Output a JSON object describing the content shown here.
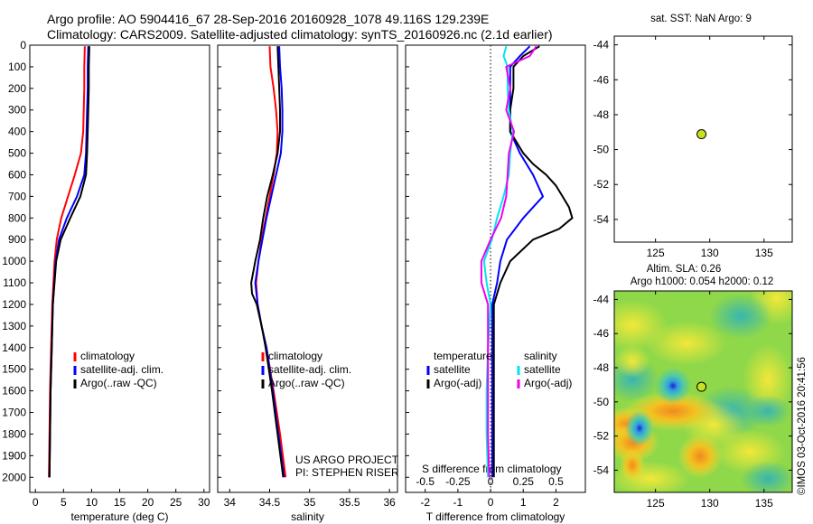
{
  "header": {
    "title_line1": "Argo profile: AO 5904416_67 28-Sep-2016 20160928_1078 49.116S 129.239E",
    "title_line2": "Climatology: CARS2009. Satellite-adjusted climatology: synTS_20160926.nc (2.1d earlier)"
  },
  "credit": "©IMOS 03-Oct-2016 20:41:56",
  "colors": {
    "climatology": "#ff0000",
    "satellite": "#0000ff",
    "argo": "#000000",
    "sal_satellite": "#00e5ee",
    "sal_argo": "#ee00ee",
    "marker_fill": "#c8e020"
  },
  "chart_data": [
    {
      "type": "line",
      "panel": "temperature",
      "xlabel": "temperature (deg C)",
      "ylabel": "",
      "xlim": [
        -1,
        31
      ],
      "ylim": [
        2070,
        0
      ],
      "xticks": [
        "0",
        "5",
        "10",
        "15",
        "20",
        "25",
        "30"
      ],
      "yticks": [
        "0",
        "100",
        "200",
        "300",
        "400",
        "500",
        "600",
        "700",
        "800",
        "900",
        "1000",
        "1100",
        "1200",
        "1300",
        "1400",
        "1500",
        "1600",
        "1700",
        "1800",
        "1900",
        "2000"
      ],
      "legend": [
        "climatology",
        "satellite-adj. clim.",
        "Argo(..raw -QC)"
      ],
      "series": [
        {
          "name": "climatology",
          "depth": [
            5,
            100,
            200,
            300,
            400,
            500,
            600,
            700,
            800,
            900,
            1000,
            1200,
            1400,
            1600,
            1800,
            2000
          ],
          "values": [
            8.8,
            8.7,
            8.7,
            8.6,
            8.5,
            8.1,
            7.0,
            5.8,
            4.6,
            3.8,
            3.4,
            3.0,
            2.8,
            2.6,
            2.5,
            2.4
          ]
        },
        {
          "name": "satellite-adj. clim.",
          "depth": [
            5,
            100,
            200,
            300,
            400,
            500,
            600,
            700,
            800,
            900,
            1000,
            1200,
            1400,
            1600,
            1800,
            2000
          ],
          "values": [
            9.4,
            9.3,
            9.3,
            9.2,
            9.1,
            9.0,
            8.7,
            7.4,
            5.6,
            4.2,
            3.6,
            3.1,
            2.9,
            2.7,
            2.6,
            2.5
          ]
        },
        {
          "name": "Argo(..raw -QC)",
          "depth": [
            5,
            100,
            200,
            300,
            400,
            500,
            600,
            700,
            800,
            900,
            1000,
            1200,
            1400,
            1600,
            1800,
            2000
          ],
          "values": [
            9.6,
            9.5,
            9.5,
            9.4,
            9.3,
            9.2,
            9.0,
            8.0,
            6.2,
            4.5,
            3.7,
            3.1,
            2.9,
            2.7,
            2.6,
            2.5
          ]
        }
      ],
      "annotations": []
    },
    {
      "type": "line",
      "panel": "salinity",
      "xlabel": "salinity",
      "xlim": [
        33.85,
        36.1
      ],
      "ylim": [
        2070,
        0
      ],
      "xticks": [
        "34",
        "34.5",
        "35",
        "35.5",
        "36"
      ],
      "legend": [
        "climatology",
        "satellite-adj. clim.",
        "Argo(..raw -QC)"
      ],
      "series": [
        {
          "name": "climatology",
          "depth": [
            5,
            100,
            200,
            300,
            400,
            500,
            600,
            700,
            800,
            900,
            1000,
            1100,
            1200,
            1300,
            1400,
            1600,
            1800,
            2000
          ],
          "values": [
            34.5,
            34.51,
            34.55,
            34.58,
            34.6,
            34.59,
            34.55,
            34.5,
            34.45,
            34.4,
            34.36,
            34.33,
            34.35,
            34.4,
            34.46,
            34.55,
            34.63,
            34.7
          ]
        },
        {
          "name": "satellite-adj. clim.",
          "depth": [
            5,
            100,
            200,
            300,
            400,
            500,
            600,
            700,
            800,
            900,
            1000,
            1100,
            1200,
            1300,
            1400,
            1600,
            1800,
            2000
          ],
          "values": [
            34.62,
            34.63,
            34.65,
            34.66,
            34.66,
            34.64,
            34.58,
            34.52,
            34.46,
            34.41,
            34.36,
            34.32,
            34.35,
            34.4,
            34.46,
            34.54,
            34.61,
            34.68
          ]
        },
        {
          "name": "Argo(..raw -QC)",
          "depth": [
            5,
            100,
            200,
            300,
            400,
            500,
            600,
            700,
            800,
            900,
            1000,
            1100,
            1150,
            1200,
            1300,
            1400,
            1600,
            1800,
            2000
          ],
          "values": [
            34.6,
            34.61,
            34.62,
            34.63,
            34.63,
            34.6,
            34.54,
            34.47,
            34.42,
            34.38,
            34.32,
            34.27,
            34.28,
            34.34,
            34.4,
            34.45,
            34.53,
            34.6,
            34.67
          ]
        }
      ],
      "annotations": [
        "US ARGO PROJECT",
        "PI: STEPHEN RISER"
      ]
    },
    {
      "type": "line",
      "panel": "difference",
      "xlabel": "T difference from climatology",
      "x2label": "S difference from climatology",
      "xlim": [
        -2.6,
        2.9
      ],
      "ylim": [
        2070,
        0
      ],
      "xticks": [
        "-2",
        "-1",
        "0",
        "1",
        "2"
      ],
      "x2ticks": [
        "-0.5",
        "-0.25",
        "0",
        "0.25",
        "0.5"
      ],
      "legend_temperature": {
        "title": "temperature",
        "items": [
          "satellite",
          "Argo(-adj)"
        ]
      },
      "legend_salinity": {
        "title": "salinity",
        "items": [
          "satellite",
          "Argo(-adj)"
        ]
      },
      "series": [
        {
          "name": "temperature satellite",
          "depth": [
            5,
            50,
            100,
            200,
            300,
            400,
            500,
            600,
            700,
            800,
            900,
            1000,
            1100,
            1200,
            1400,
            1600,
            1800,
            2000
          ],
          "values": [
            1.2,
            0.9,
            0.6,
            0.6,
            0.6,
            0.6,
            0.9,
            1.3,
            1.6,
            1.0,
            0.5,
            0.3,
            0.2,
            0.05,
            0.05,
            0.05,
            0.05,
            0.05
          ]
        },
        {
          "name": "temperature Argo(-adj)",
          "depth": [
            5,
            50,
            100,
            200,
            300,
            400,
            500,
            550,
            600,
            650,
            700,
            750,
            800,
            850,
            900,
            1000,
            1100,
            1200,
            1400,
            1600,
            1800,
            2000
          ],
          "values": [
            1.5,
            1.0,
            0.7,
            0.7,
            0.6,
            0.6,
            1.0,
            1.3,
            1.7,
            2.0,
            2.2,
            2.4,
            2.5,
            2.1,
            1.3,
            0.6,
            0.3,
            0.1,
            0.1,
            0.1,
            0.1,
            0.1
          ]
        },
        {
          "name": "salinity satellite",
          "depth": [
            5,
            50,
            100,
            200,
            300,
            400,
            500,
            600,
            700,
            800,
            900,
            1000,
            1100,
            1200,
            1400,
            1600,
            1800,
            2000
          ],
          "values": [
            0.12,
            0.1,
            0.13,
            0.13,
            0.14,
            0.17,
            0.15,
            0.14,
            0.1,
            0.05,
            0.01,
            -0.05,
            -0.03,
            0.0,
            -0.02,
            -0.03,
            -0.03,
            -0.02
          ]
        },
        {
          "name": "salinity Argo(-adj)",
          "depth": [
            5,
            50,
            100,
            200,
            300,
            400,
            500,
            600,
            700,
            800,
            900,
            1000,
            1100,
            1200,
            1400,
            1600,
            1800,
            2000
          ],
          "values": [
            0.35,
            0.3,
            0.12,
            0.15,
            0.12,
            0.18,
            0.14,
            0.13,
            0.12,
            0.08,
            0.0,
            -0.07,
            -0.07,
            -0.02,
            -0.02,
            -0.02,
            -0.02,
            -0.01
          ]
        }
      ],
      "annotations": []
    },
    {
      "type": "scatter",
      "panel": "sst-position",
      "title": "sat. SST: NaN Argo: 9",
      "xlim": [
        121.2,
        137.6
      ],
      "ylim": [
        -55.3,
        -43.5
      ],
      "xticks": [
        "125",
        "130",
        "135"
      ],
      "yticks": [
        "-44",
        "-46",
        "-48",
        "-50",
        "-52",
        "-54"
      ],
      "points": [
        {
          "x": 129.239,
          "y": -49.116
        }
      ]
    },
    {
      "type": "heatmap",
      "panel": "altimetry-sla",
      "title_line1": "Altim. SLA: 0.26",
      "title_line2": "Argo h1000: 0.054 h2000: 0.12",
      "xlim": [
        121.2,
        137.6
      ],
      "ylim": [
        -55.3,
        -43.5
      ],
      "xticks": [
        "125",
        "130",
        "135"
      ],
      "yticks": [
        "-44",
        "-46",
        "-48",
        "-50",
        "-52",
        "-54"
      ],
      "points": [
        {
          "x": 129.239,
          "y": -49.116
        }
      ]
    }
  ]
}
